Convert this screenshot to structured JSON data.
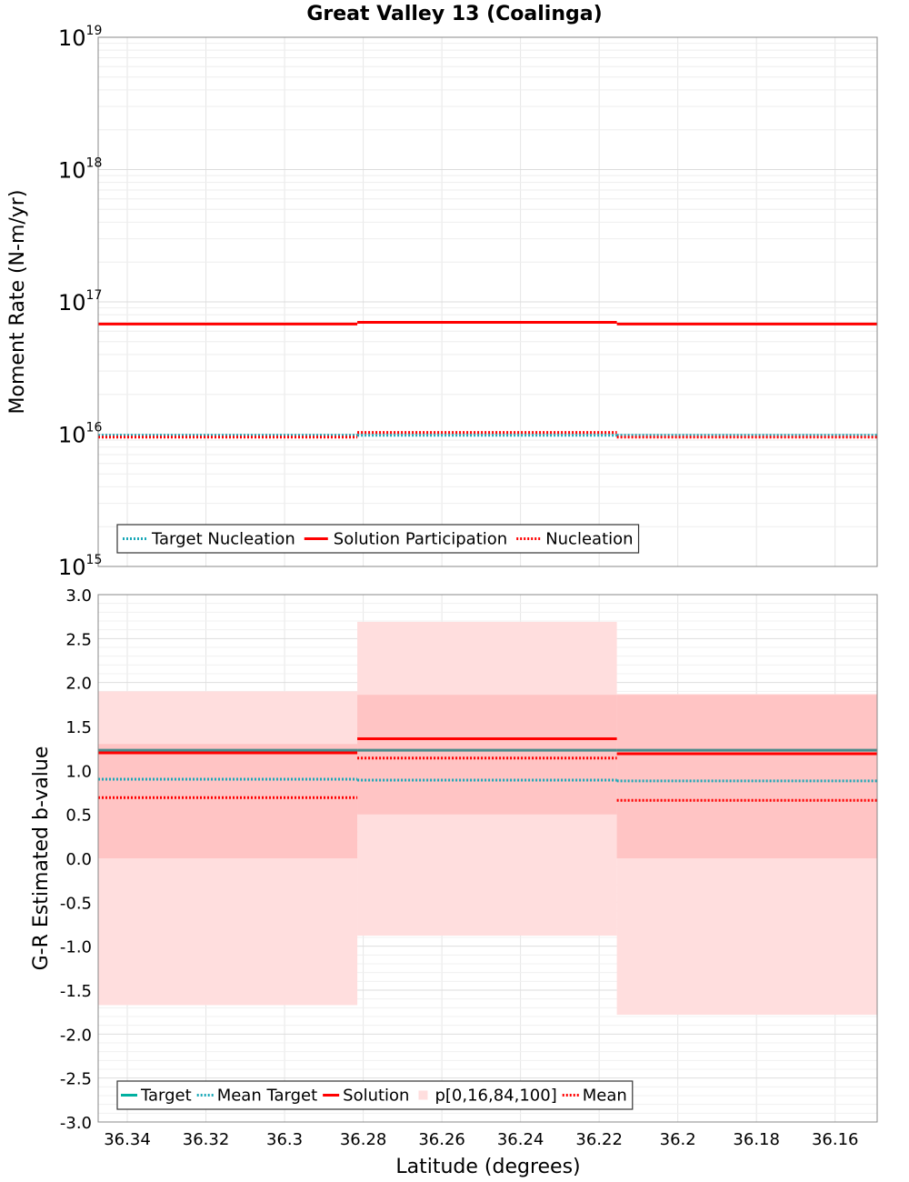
{
  "title": "Great Valley 13 (Coalinga)",
  "xlabel": "Latitude (degrees)",
  "colors": {
    "target": "#00b0a0",
    "target_dotted": "#1aa8b8",
    "solution": "#ff0000",
    "band_outer": "#ffdede",
    "band_inner": "#ffc4c4",
    "grid": "#e6e6e6"
  },
  "chart_data": [
    {
      "type": "line",
      "panel": "top",
      "ylabel": "Moment Rate (N-m/yr)",
      "yscale": "log",
      "ylim": [
        1000000000000000.0,
        1e+19
      ],
      "xlim": [
        36.3474,
        36.1493
      ],
      "x_reversed": true,
      "yticks": [
        {
          "base": "10",
          "exp": "15",
          "value": 1000000000000000.0
        },
        {
          "base": "10",
          "exp": "16",
          "value": 1e+16
        },
        {
          "base": "10",
          "exp": "17",
          "value": 1e+17
        },
        {
          "base": "10",
          "exp": "18",
          "value": 1e+18
        },
        {
          "base": "10",
          "exp": "19",
          "value": 1e+19
        }
      ],
      "section_edges": [
        36.3474,
        36.2815,
        36.2155,
        36.1493
      ],
      "series": [
        {
          "name": "Target Nucleation",
          "style": "dotted",
          "color": "#1aa8b8",
          "values": [
            9800000000000000.0,
            9800000000000000.0,
            9800000000000000.0
          ]
        },
        {
          "name": "Solution Participation",
          "style": "solid",
          "color": "#ff0000",
          "values": [
            6.8e+16,
            7e+16,
            6.8e+16
          ]
        },
        {
          "name": "Nucleation",
          "style": "dotted",
          "color": "#ff0000",
          "values": [
            9500000000000000.0,
            1.03e+16,
            9500000000000000.0
          ]
        }
      ],
      "legend": {
        "position": "bottom-left",
        "entries": [
          "Target Nucleation",
          "Solution Participation",
          "Nucleation"
        ]
      },
      "grid": true
    },
    {
      "type": "line",
      "panel": "bottom",
      "ylabel": "G-R Estimated b-value",
      "ylim": [
        -3.0,
        3.0
      ],
      "xlim": [
        36.3474,
        36.1493
      ],
      "x_reversed": true,
      "yticks": [
        "-3.0",
        "-2.5",
        "-2.0",
        "-1.5",
        "-1.0",
        "-0.5",
        "0.0",
        "0.5",
        "1.0",
        "1.5",
        "2.0",
        "2.5",
        "3.0"
      ],
      "xticks": [
        "36.34",
        "36.32",
        "36.3",
        "36.28",
        "36.26",
        "36.24",
        "36.22",
        "36.2",
        "36.18",
        "36.16"
      ],
      "section_edges": [
        36.3474,
        36.2815,
        36.2155,
        36.1493
      ],
      "bands": {
        "p0": [
          -1.67,
          -0.88,
          -1.78
        ],
        "p16": [
          0.0,
          0.5,
          0.0
        ],
        "p84": [
          1.3,
          1.86,
          1.86
        ],
        "p100": [
          1.9,
          2.69,
          1.87
        ]
      },
      "series": [
        {
          "name": "Target",
          "style": "solid",
          "color": "#4a8a8a",
          "values": [
            1.23,
            1.23,
            1.23
          ]
        },
        {
          "name": "Mean Target",
          "style": "dotted",
          "color": "#1aa8b8",
          "values": [
            0.9,
            0.89,
            0.88
          ]
        },
        {
          "name": "Solution",
          "style": "solid",
          "color": "#ff0000",
          "values": [
            1.2,
            1.36,
            1.19
          ]
        },
        {
          "name": "Mean",
          "style": "dotted",
          "color": "#ff0000",
          "values": [
            0.69,
            1.14,
            0.66
          ]
        }
      ],
      "legend": {
        "position": "bottom-left",
        "entries": [
          "Target",
          "Mean Target",
          "Solution",
          "p[0,16,84,100]",
          "Mean"
        ]
      },
      "grid": true
    }
  ]
}
